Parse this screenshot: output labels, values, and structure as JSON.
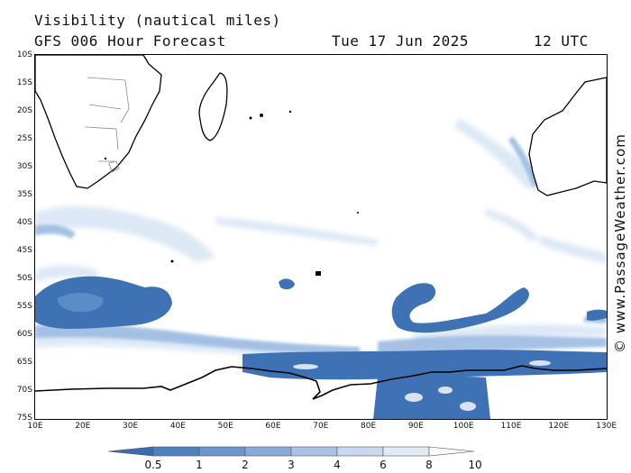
{
  "header": {
    "title": "Visibility (nautical miles)",
    "subtitle": "GFS 006 Hour Forecast",
    "date": "Tue 17 Jun 2025",
    "time": "12 UTC"
  },
  "map": {
    "lat_labels": [
      "10S",
      "15S",
      "20S",
      "25S",
      "30S",
      "35S",
      "40S",
      "45S",
      "50S",
      "55S",
      "60S",
      "65S",
      "70S",
      "75S"
    ],
    "lon_labels": [
      "10E",
      "20E",
      "30E",
      "40E",
      "50E",
      "60E",
      "70E",
      "80E",
      "90E",
      "100E",
      "110E",
      "120E",
      "130E"
    ],
    "colors": {
      "land_outline": "#000000",
      "border": "#8a8a8a",
      "vis_low": "#3a6fb0",
      "vis_mid": "#7fa5d6",
      "vis_high": "#cfe0f2"
    }
  },
  "legend": {
    "labels": [
      "0.5",
      "1",
      "2",
      "3",
      "4",
      "6",
      "8",
      "10"
    ],
    "colors": [
      "#3a6cb0",
      "#4f80c0",
      "#6b95cc",
      "#8aabd9",
      "#a9c3e4",
      "#c8d9ef",
      "#e2ecf7",
      "#f7fafd"
    ]
  },
  "credit": "© www.PassageWeather.com"
}
